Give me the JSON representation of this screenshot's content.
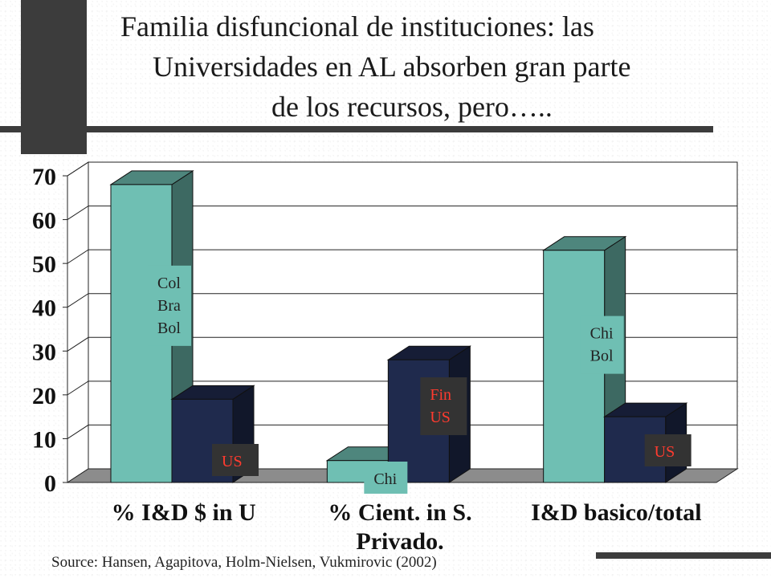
{
  "slide": {
    "title_lines": [
      "Familia disfuncional de instituciones: las",
      "Universidades en AL absorben gran parte",
      "de los recursos, pero….."
    ],
    "source": "Source: Hansen, Agapitova, Holm-Nielsen, Vukmirovic (2002)"
  },
  "chart_data": {
    "type": "bar",
    "style": "3d-clustered",
    "categories": [
      "% I&D $ in U",
      "% Cient. in S. Privado.",
      "I&D basico/total"
    ],
    "series": [
      {
        "values": [
          68,
          5,
          53
        ],
        "color": "#6fbfb3"
      },
      {
        "values": [
          19,
          28,
          15
        ],
        "color": "#1f2a4d"
      }
    ],
    "ylim": [
      0,
      70
    ],
    "yticks": [
      0,
      10,
      20,
      30,
      40,
      50,
      60,
      70
    ],
    "grid": true,
    "annotations": [
      {
        "lines": [
          "Col",
          "Bra",
          "Bol"
        ],
        "category": 0,
        "series": 0,
        "bg": "#6fbfb3",
        "color": "#222222"
      },
      {
        "lines": [
          "US"
        ],
        "category": 0,
        "series": 1,
        "bg": "#333333",
        "color": "#ff3b2f"
      },
      {
        "lines": [
          "Chi"
        ],
        "category": 1,
        "series": 0,
        "bg": "#6fbfb3",
        "color": "#222222"
      },
      {
        "lines": [
          "Fin",
          "US"
        ],
        "category": 1,
        "series": 1,
        "bg": "#333333",
        "color": "#ff3b2f"
      },
      {
        "lines": [
          "Chi",
          "Bol"
        ],
        "category": 2,
        "series": 0,
        "bg": "#6fbfb3",
        "color": "#222222"
      },
      {
        "lines": [
          "US"
        ],
        "category": 2,
        "series": 1,
        "bg": "#333333",
        "color": "#ff3b2f"
      }
    ]
  }
}
